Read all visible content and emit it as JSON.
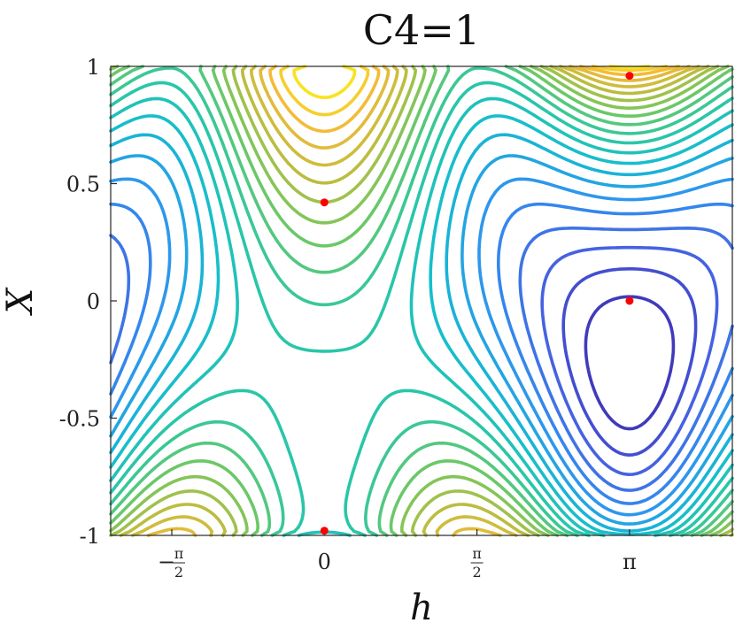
{
  "chart_data": {
    "type": "contour",
    "title": "C4=1",
    "xlabel": "h",
    "ylabel": "X",
    "xlim": [
      -2.2,
      4.2
    ],
    "ylim": [
      -1,
      1
    ],
    "xticks": [
      {
        "value": -1.5708,
        "label": "-π/2",
        "num": "π",
        "den": "2",
        "sign": "−"
      },
      {
        "value": 0,
        "label": "0"
      },
      {
        "value": 1.5708,
        "label": "π/2",
        "num": "π",
        "den": "2",
        "sign": ""
      },
      {
        "value": 3.1416,
        "label": "π"
      }
    ],
    "yticks": [
      {
        "value": 1,
        "label": "1"
      },
      {
        "value": 0.5,
        "label": "0.5"
      },
      {
        "value": 0,
        "label": "0"
      },
      {
        "value": -0.5,
        "label": "-0.5"
      },
      {
        "value": -1,
        "label": "-1"
      }
    ],
    "critical_points": [
      {
        "x": 0,
        "y": 0.42
      },
      {
        "x": 3.1416,
        "y": 0.96
      },
      {
        "x": 3.1416,
        "y": 0.0
      },
      {
        "x": 0,
        "y": -0.98
      }
    ],
    "levels": 22,
    "colormap": [
      "#3e26a8",
      "#4760e0",
      "#2f94f0",
      "#14bcd0",
      "#2ec8a0",
      "#74c860",
      "#c2bc3c",
      "#f5bb38",
      "#f9f815"
    ],
    "point_color": "#ff0000",
    "grid": false
  }
}
